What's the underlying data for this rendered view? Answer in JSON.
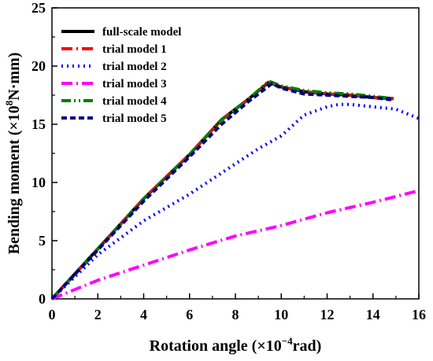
{
  "chart_data": {
    "type": "line",
    "xlabel_prefix": "Rotation angle (×10",
    "xlabel_exp": "−4",
    "xlabel_suffix": "rad)",
    "ylabel_prefix": "Bending moment (×10",
    "ylabel_exp": "8",
    "ylabel_suffix": "N·mm)",
    "xlim": [
      0,
      16
    ],
    "ylim": [
      0,
      25
    ],
    "xticks": [
      "0",
      "2",
      "4",
      "6",
      "8",
      "10",
      "12",
      "14",
      "16"
    ],
    "yticks": [
      "0",
      "5",
      "10",
      "15",
      "20",
      "25"
    ],
    "grid": false,
    "legend_position": "top-left",
    "series": [
      {
        "name": "full-scale model",
        "color": "#000000",
        "style": "solid",
        "x": [
          0,
          2,
          4,
          6,
          7.4,
          8.6,
          9.45,
          10,
          11,
          12,
          13,
          14,
          14.9
        ],
        "y": [
          0,
          4.3,
          8.6,
          12.4,
          15.4,
          17.2,
          18.6,
          18.2,
          17.8,
          17.6,
          17.5,
          17.3,
          17.2
        ]
      },
      {
        "name": "trial model 1",
        "color": "#ff0000",
        "style": "dashdot",
        "x": [
          0,
          2,
          4,
          6,
          7.4,
          8.6,
          9.45,
          10,
          11,
          12,
          13,
          14,
          14.9
        ],
        "y": [
          0,
          4.3,
          8.6,
          12.4,
          15.4,
          17.2,
          18.6,
          18.2,
          17.8,
          17.6,
          17.5,
          17.3,
          17.2
        ]
      },
      {
        "name": "trial model 2",
        "color": "#0000ff",
        "style": "dotted",
        "x": [
          0,
          2,
          4,
          6,
          8,
          9,
          10,
          11,
          12,
          12.5,
          13,
          14,
          15,
          16
        ],
        "y": [
          0,
          3.8,
          6.7,
          9,
          11.6,
          12.9,
          14,
          15.8,
          16.5,
          16.7,
          16.7,
          16.5,
          16.3,
          15.5
        ]
      },
      {
        "name": "trial model 3",
        "color": "#ff00ff",
        "style": "dashdot",
        "x": [
          0,
          2,
          4,
          6,
          8,
          10,
          12,
          14,
          16
        ],
        "y": [
          0,
          1.6,
          2.9,
          4.2,
          5.4,
          6.3,
          7.4,
          8.3,
          9.3
        ]
      },
      {
        "name": "trial model 4",
        "color": "#008000",
        "style": "dashdotdot",
        "x": [
          0,
          2,
          4,
          6,
          7.4,
          8.6,
          9.45,
          10,
          11,
          12,
          13,
          14,
          14.9
        ],
        "y": [
          0,
          4.3,
          8.6,
          12.4,
          15.4,
          17.2,
          18.7,
          18.3,
          17.9,
          17.7,
          17.6,
          17.4,
          17.2
        ]
      },
      {
        "name": "trial model 5",
        "color": "#000080",
        "style": "shortdash",
        "x": [
          0,
          2,
          4,
          6,
          7.4,
          8.6,
          9.6,
          10,
          11,
          12,
          13,
          14,
          14.8
        ],
        "y": [
          0,
          4.2,
          8.4,
          12.2,
          15,
          17,
          18.5,
          18.1,
          17.6,
          17.5,
          17.4,
          17.3,
          17.1
        ]
      }
    ]
  }
}
